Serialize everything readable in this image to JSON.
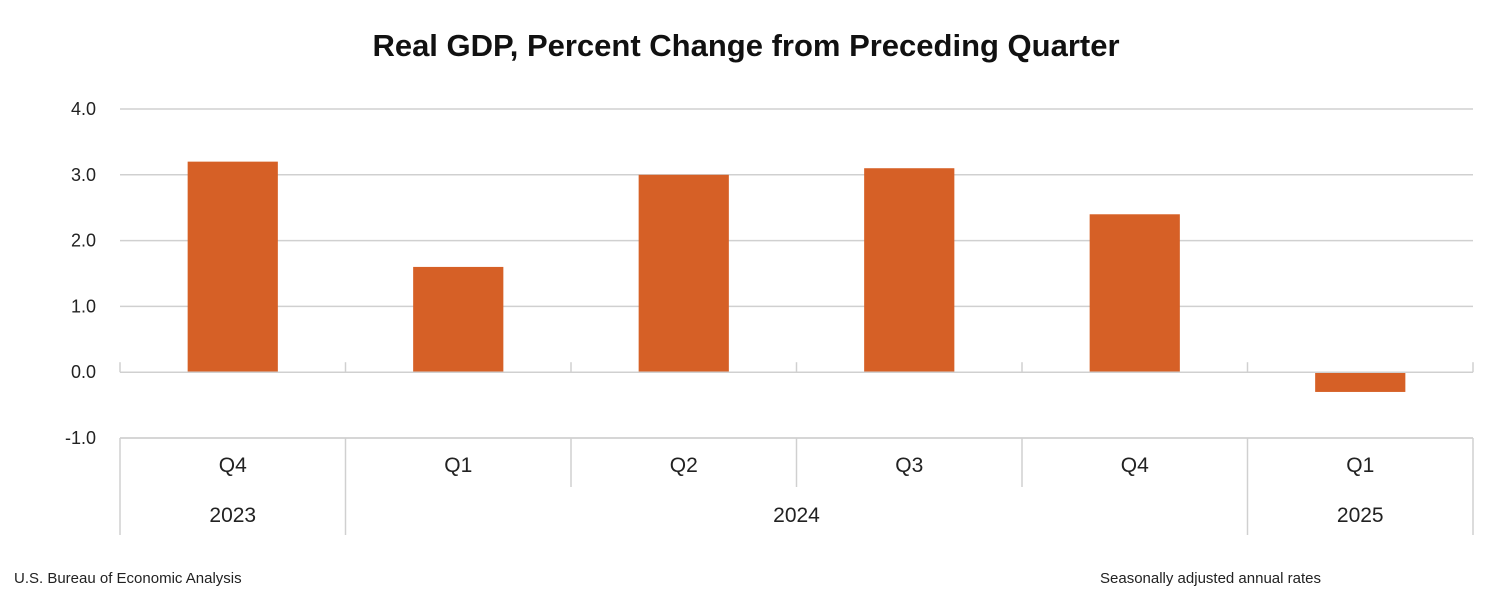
{
  "chart_data": {
    "type": "bar",
    "title": "Real GDP, Percent Change from Preceding Quarter",
    "xlabel": "",
    "ylabel": "",
    "ylim": [
      -1.0,
      4.0
    ],
    "yticks": [
      "4.0",
      "3.0",
      "2.0",
      "1.0",
      "0.0",
      "-1.0"
    ],
    "ytick_values": [
      4,
      3,
      2,
      1,
      0,
      -1
    ],
    "categories": [
      "Q4",
      "Q1",
      "Q2",
      "Q3",
      "Q4",
      "Q1"
    ],
    "year_groups": [
      {
        "label": "2023",
        "span": 1
      },
      {
        "label": "2024",
        "span": 4
      },
      {
        "label": "2025",
        "span": 1
      }
    ],
    "values": [
      3.2,
      1.6,
      3.0,
      3.1,
      2.4,
      -0.3
    ],
    "grid": true,
    "bar_color": "#d66026"
  },
  "footer": {
    "source": "U.S. Bureau of Economic Analysis",
    "note": "Seasonally adjusted annual rates"
  }
}
